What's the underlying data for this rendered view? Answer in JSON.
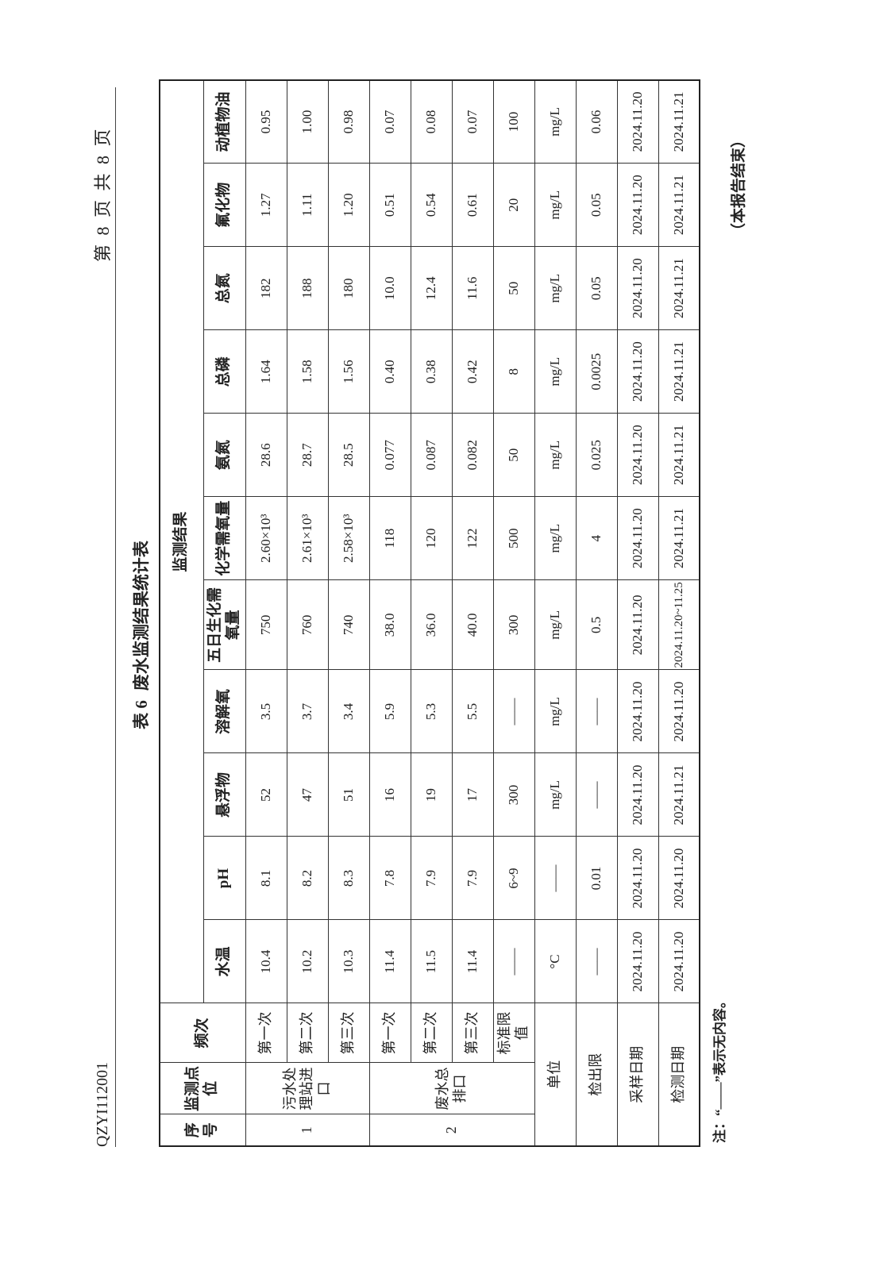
{
  "header": {
    "doc_id": "QZYI112001",
    "page": "第 8 页 共 8 页"
  },
  "title": {
    "number": "表 6",
    "text": "废水监测结果统计表"
  },
  "table": {
    "headers": {
      "no": "序号",
      "site": "监测点位",
      "freq": "频次",
      "group": "监测结果"
    },
    "columns": [
      "水温",
      "pH",
      "悬浮物",
      "溶解氧",
      "五日生化需氧量",
      "化学需氧量",
      "氨氮",
      "总磷",
      "总氮",
      "氟化物",
      "动植物油"
    ],
    "sites": [
      {
        "no": "1",
        "name": "污水处理站进口",
        "rows": [
          {
            "freq": "第一次",
            "values": [
              "10.4",
              "8.1",
              "52",
              "3.5",
              "750",
              "2.60×10³",
              "28.6",
              "1.64",
              "182",
              "1.27",
              "0.95"
            ]
          },
          {
            "freq": "第二次",
            "values": [
              "10.2",
              "8.2",
              "47",
              "3.7",
              "760",
              "2.61×10³",
              "28.7",
              "1.58",
              "188",
              "1.11",
              "1.00"
            ]
          },
          {
            "freq": "第三次",
            "values": [
              "10.3",
              "8.3",
              "51",
              "3.4",
              "740",
              "2.58×10³",
              "28.5",
              "1.56",
              "180",
              "1.20",
              "0.98"
            ]
          }
        ]
      },
      {
        "no": "2",
        "name": "废水总排口",
        "rows": [
          {
            "freq": "第一次",
            "values": [
              "11.4",
              "7.8",
              "16",
              "5.9",
              "38.0",
              "118",
              "0.077",
              "0.40",
              "10.0",
              "0.51",
              "0.07"
            ]
          },
          {
            "freq": "第二次",
            "values": [
              "11.5",
              "7.9",
              "19",
              "5.3",
              "36.0",
              "120",
              "0.087",
              "0.38",
              "12.4",
              "0.54",
              "0.08"
            ]
          },
          {
            "freq": "第三次",
            "values": [
              "11.4",
              "7.9",
              "17",
              "5.5",
              "40.0",
              "122",
              "0.082",
              "0.42",
              "11.6",
              "0.61",
              "0.07"
            ]
          },
          {
            "freq": "标准限值",
            "values": [
              "——",
              "6~9",
              "300",
              "——",
              "300",
              "500",
              "50",
              "8",
              "50",
              "20",
              "100"
            ]
          }
        ]
      }
    ],
    "footer_rows": [
      {
        "label": "单位",
        "values": [
          "°C",
          "——",
          "mg/L",
          "mg/L",
          "mg/L",
          "mg/L",
          "mg/L",
          "mg/L",
          "mg/L",
          "mg/L",
          "mg/L"
        ]
      },
      {
        "label": "检出限",
        "values": [
          "——",
          "0.01",
          "——",
          "——",
          "0.5",
          "4",
          "0.025",
          "0.0025",
          "0.05",
          "0.05",
          "0.06"
        ]
      },
      {
        "label": "采样日期",
        "values": [
          "2024.11.20",
          "2024.11.20",
          "2024.11.20",
          "2024.11.20",
          "2024.11.20",
          "2024.11.20",
          "2024.11.20",
          "2024.11.20",
          "2024.11.20",
          "2024.11.20",
          "2024.11.20"
        ]
      },
      {
        "label": "检测日期",
        "values": [
          "2024.11.20",
          "2024.11.20",
          "2024.11.21",
          "2024.11.20",
          "2024.11.20~11.25",
          "2024.11.21",
          "2024.11.21",
          "2024.11.21",
          "2024.11.21",
          "2024.11.21",
          "2024.11.21"
        ]
      }
    ]
  },
  "note": "注：“——”表示无内容。",
  "end": "（本报告结束）"
}
